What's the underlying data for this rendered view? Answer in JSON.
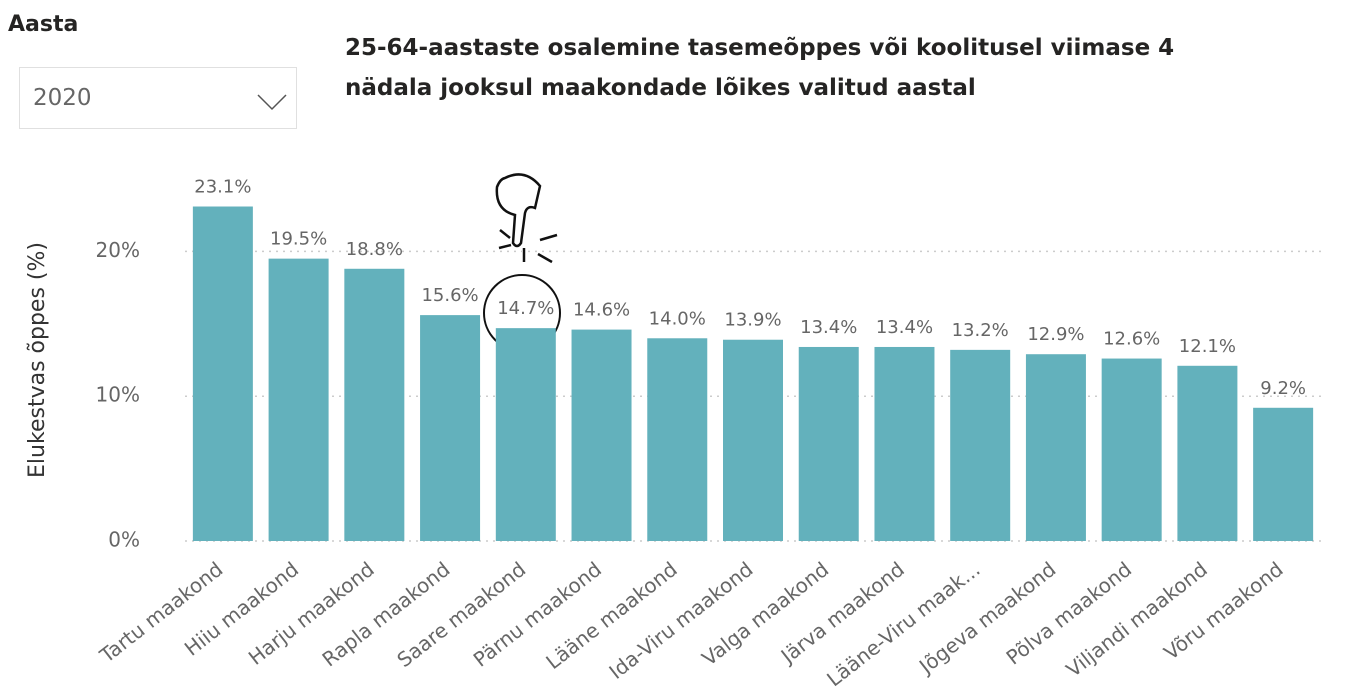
{
  "slicer": {
    "label": "Aasta",
    "value": "2020"
  },
  "chart_data": {
    "type": "bar",
    "title": "25-64-aastaste osalemine tasemeõppes või koolitusel viimase 4 nädala jooksul maakondade lõikes valitud aastal",
    "y_label": "Elukestvas õppes (%)",
    "categories": [
      "Tartu maakond",
      "Hiiu maakond",
      "Harju maakond",
      "Rapla maakond",
      "Saare maakond",
      "Pärnu maakond",
      "Lääne maakond",
      "Ida-Viru maakond",
      "Valga maakond",
      "Järva maakond",
      "Lääne-Viru maak...",
      "Jõgeva maakond",
      "Põlva maakond",
      "Viljandi maakond",
      "Võru maakond"
    ],
    "values": [
      23.1,
      19.5,
      18.8,
      15.6,
      14.7,
      14.6,
      14.0,
      13.9,
      13.4,
      13.4,
      13.2,
      12.9,
      12.6,
      12.1,
      9.2
    ],
    "value_labels": [
      "23.1%",
      "19.5%",
      "18.8%",
      "15.6%",
      "14.7%",
      "14.6%",
      "14.0%",
      "13.9%",
      "13.4%",
      "13.4%",
      "13.2%",
      "12.9%",
      "12.6%",
      "12.1%",
      "9.2%"
    ],
    "color": "#63b1bc",
    "ylim": [
      0,
      25
    ],
    "yticks": [
      {
        "value": 0,
        "label": "0%"
      },
      {
        "value": 10,
        "label": "10%"
      },
      {
        "value": 20,
        "label": "20%"
      }
    ],
    "grid": true
  }
}
